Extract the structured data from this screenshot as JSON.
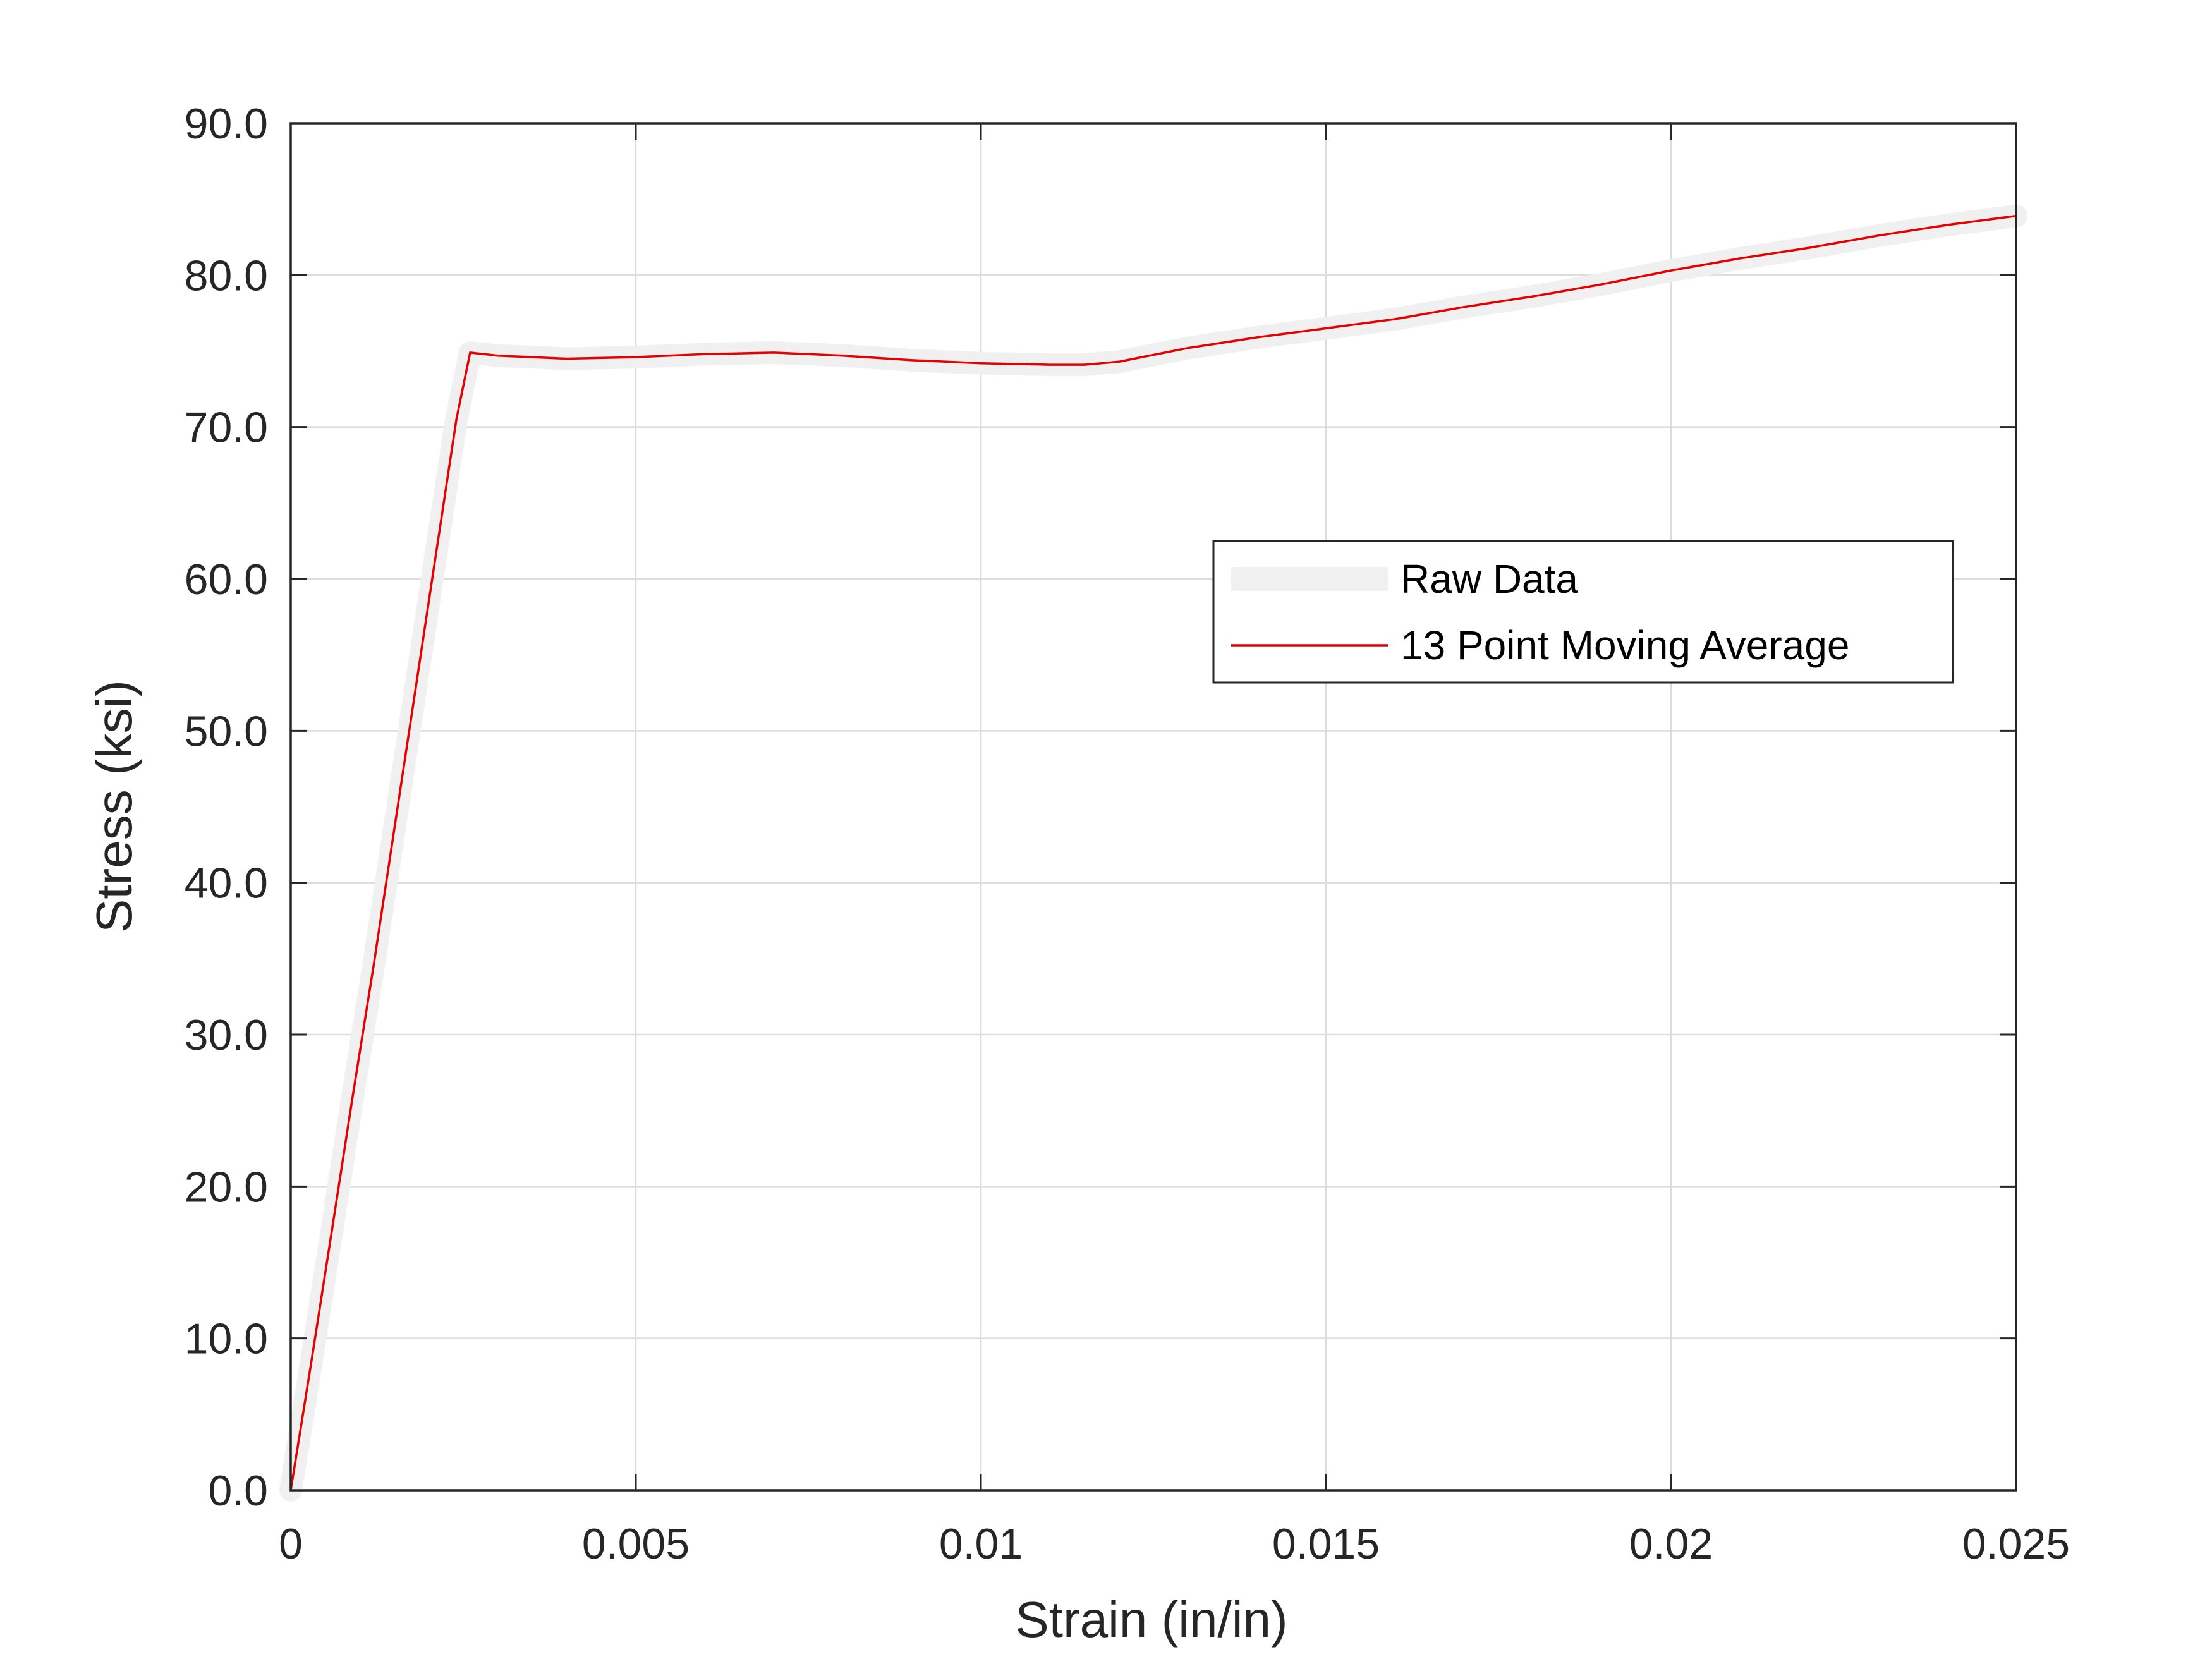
{
  "chart_data": {
    "type": "line",
    "xlabel": "Strain (in/in)",
    "ylabel": "Stress (ksi)",
    "xlim": [
      0,
      0.025
    ],
    "ylim": [
      0,
      90
    ],
    "xticks": [
      0,
      0.005,
      0.01,
      0.015,
      0.02,
      0.025
    ],
    "xtick_labels": [
      "0",
      "0.005",
      "0.01",
      "0.015",
      "0.02",
      "0.025"
    ],
    "yticks": [
      0,
      10,
      20,
      30,
      40,
      50,
      60,
      70,
      80,
      90
    ],
    "ytick_labels": [
      "0.0",
      "10.0",
      "20.0",
      "30.0",
      "40.0",
      "50.0",
      "60.0",
      "70.0",
      "80.0",
      "90.0"
    ],
    "grid": true,
    "legend_position": "right",
    "series": [
      {
        "name": "Raw Data",
        "color": "#f0f0f0",
        "style": "thick-band",
        "x": [
          0,
          0.0003,
          0.0006,
          0.0009,
          0.0012,
          0.0015,
          0.0018,
          0.0021,
          0.0024,
          0.0026,
          0.0028,
          0.003,
          0.004,
          0.005,
          0.006,
          0.007,
          0.008,
          0.009,
          0.01,
          0.011,
          0.0115,
          0.012,
          0.013,
          0.014,
          0.015,
          0.016,
          0.017,
          0.018,
          0.019,
          0.02,
          0.021,
          0.022,
          0.023,
          0.024,
          0.025
        ],
        "y": [
          0,
          8.5,
          17.2,
          26,
          34.5,
          43.5,
          52.5,
          61.5,
          70.5,
          74.9,
          74.8,
          74.7,
          74.5,
          74.6,
          74.8,
          74.9,
          74.7,
          74.4,
          74.2,
          74.1,
          74.1,
          74.3,
          75.2,
          75.9,
          76.5,
          77.1,
          77.9,
          78.6,
          79.4,
          80.3,
          81.1,
          81.8,
          82.6,
          83.3,
          83.9
        ]
      },
      {
        "name": "13 Point Moving Average",
        "color": "#e60000",
        "style": "line",
        "x": [
          0,
          0.0003,
          0.0006,
          0.0009,
          0.0012,
          0.0015,
          0.0018,
          0.0021,
          0.0024,
          0.0026,
          0.0028,
          0.003,
          0.004,
          0.005,
          0.006,
          0.007,
          0.008,
          0.009,
          0.01,
          0.011,
          0.0115,
          0.012,
          0.013,
          0.014,
          0.015,
          0.016,
          0.017,
          0.018,
          0.019,
          0.02,
          0.021,
          0.022,
          0.023,
          0.024,
          0.025
        ],
        "y": [
          0,
          8.5,
          17.2,
          26,
          34.5,
          43.5,
          52.5,
          61.5,
          70.5,
          74.9,
          74.8,
          74.7,
          74.5,
          74.6,
          74.8,
          74.9,
          74.7,
          74.4,
          74.2,
          74.1,
          74.1,
          74.3,
          75.2,
          75.9,
          76.5,
          77.1,
          77.9,
          78.6,
          79.4,
          80.3,
          81.1,
          81.8,
          82.6,
          83.3,
          83.9
        ]
      }
    ]
  }
}
